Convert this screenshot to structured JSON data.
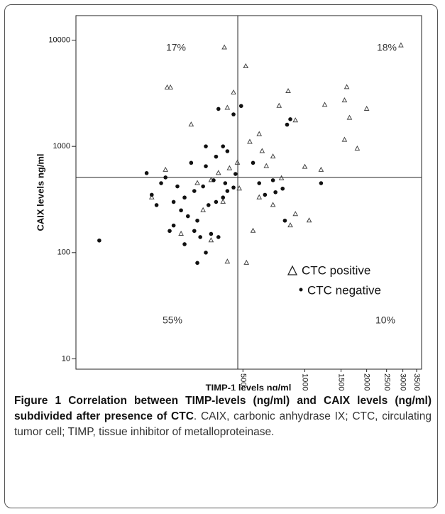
{
  "chart_data": {
    "type": "scatter",
    "xlog": true,
    "ylog": true,
    "xlabel": "TIMP-1 levels ng/ml",
    "ylabel": "CAIX levels ng/ml",
    "xlim": [
      77,
      3700
    ],
    "ylim": [
      8,
      17000
    ],
    "xticks": [
      500,
      1000,
      1500,
      2000,
      2500,
      3000,
      3500
    ],
    "yticks": [
      10,
      100,
      1000,
      10000
    ],
    "ref_x": 472,
    "ref_y": 510,
    "quadrant_labels": [
      "17%",
      "18%",
      "55%",
      "10%"
    ],
    "series": [
      {
        "name": "CTC positive",
        "marker": "triangle",
        "color": "#444444",
        "x": [
          406,
          2936,
          516,
          214,
          222,
          1600,
          1560,
          1650,
          2000,
          1250,
          1560,
          1800,
          830,
          750,
          450,
          420,
          280,
          900,
          600,
          540,
          620,
          700,
          1000,
          1200,
          770,
          650,
          470,
          430,
          380,
          350,
          300,
          210,
          180,
          600,
          700,
          900,
          1050,
          850,
          560,
          520,
          420,
          350,
          250,
          480,
          400,
          320
        ],
        "values": [
          8500,
          8900,
          5660,
          3570,
          3570,
          3600,
          2700,
          1850,
          2250,
          2450,
          1150,
          950,
          3300,
          2400,
          3200,
          2300,
          1600,
          1750,
          1300,
          1100,
          900,
          800,
          640,
          600,
          500,
          650,
          700,
          620,
          560,
          480,
          450,
          600,
          330,
          330,
          280,
          230,
          200,
          180,
          160,
          80,
          82,
          130,
          150,
          400,
          300,
          250
        ]
      },
      {
        "name": "CTC negative",
        "marker": "dot",
        "color": "#111111",
        "x": [
          100,
          230,
          220,
          250,
          270,
          300,
          290,
          310,
          260,
          350,
          380,
          330,
          300,
          340,
          370,
          400,
          420,
          450,
          410,
          360,
          320,
          290,
          240,
          200,
          180,
          190,
          170,
          210,
          280,
          330,
          370,
          400,
          420,
          450,
          490,
          380,
          330,
          560,
          600,
          700,
          720,
          780,
          640,
          800,
          850,
          820,
          1200,
          460,
          260,
          230
        ],
        "values": [
          130,
          180,
          160,
          250,
          220,
          200,
          160,
          140,
          120,
          150,
          140,
          100,
          80,
          280,
          300,
          330,
          380,
          410,
          450,
          480,
          420,
          380,
          420,
          450,
          350,
          280,
          560,
          510,
          700,
          650,
          800,
          1000,
          900,
          2000,
          2400,
          2250,
          1000,
          700,
          450,
          480,
          370,
          400,
          350,
          200,
          1800,
          1600,
          450,
          550,
          330,
          300
        ]
      }
    ]
  },
  "caption": {
    "label": "Figure 1",
    "title": "Correlation between TIMP-levels (ng/ml) and CAIX levels (ng/ml) subdivided after presence of CTC",
    "text": ". CAIX, carbonic anhydrase IX; CTC, circulating tumor cell; TIMP, tissue inhibitor of metalloproteinase."
  }
}
